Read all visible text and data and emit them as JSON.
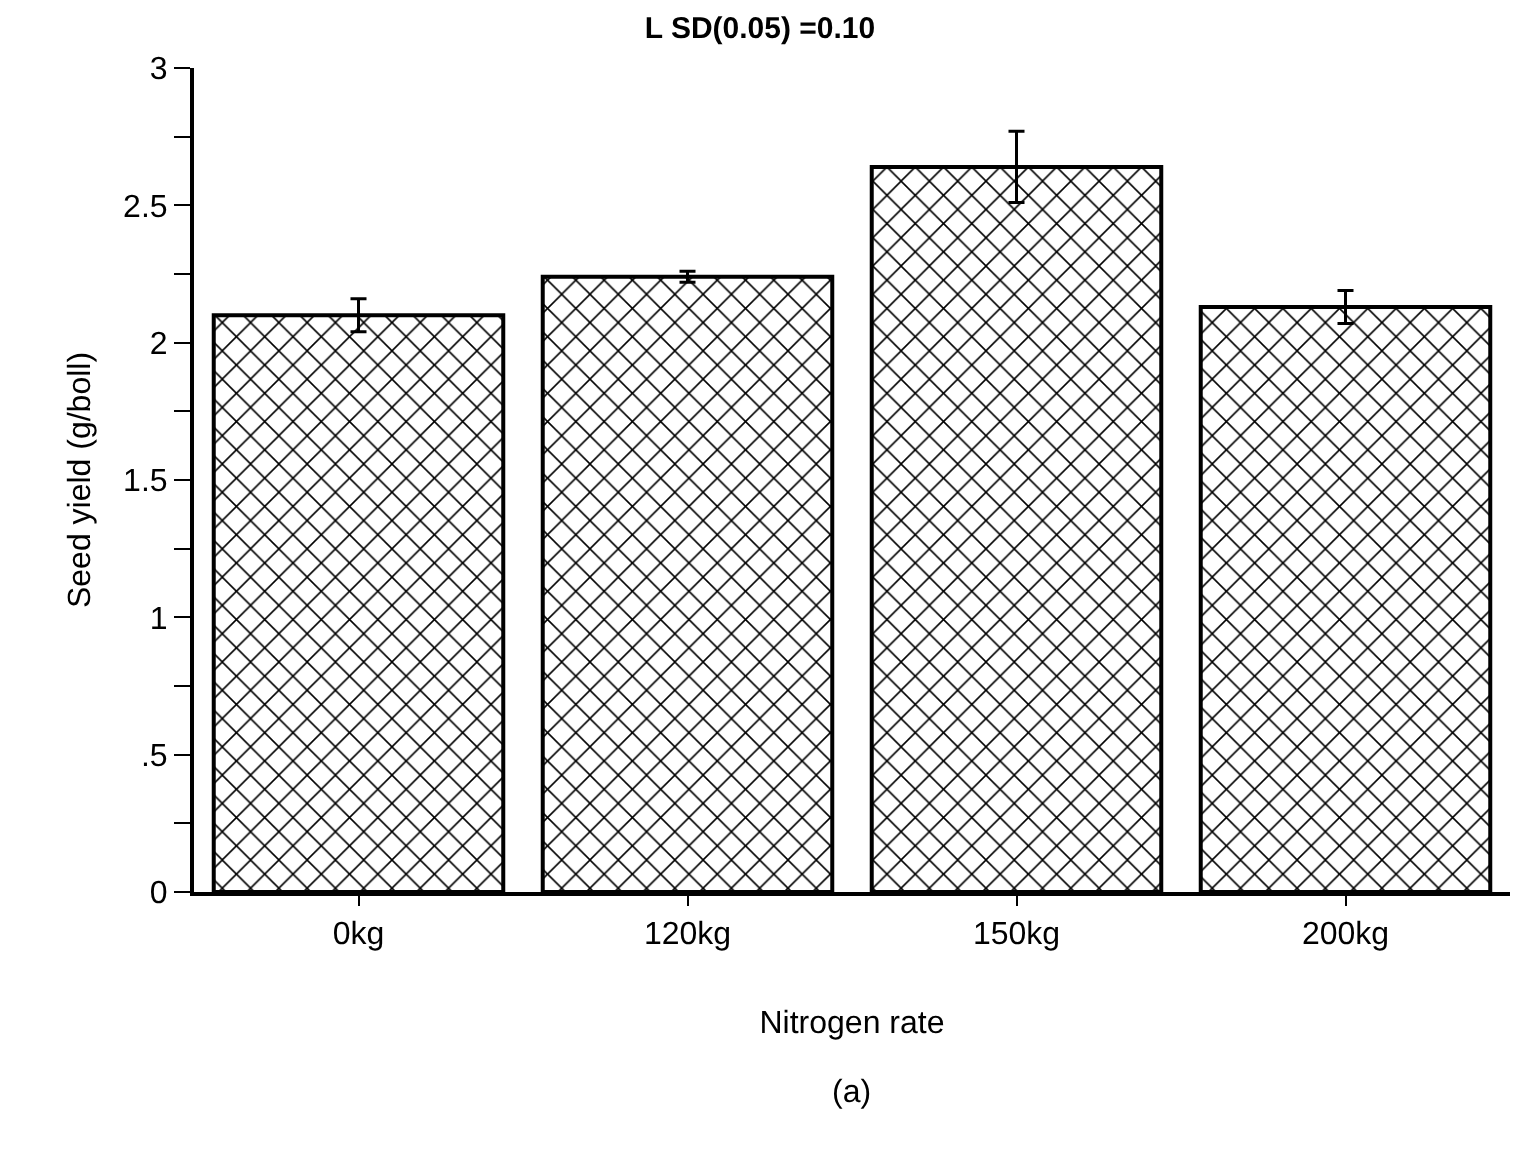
{
  "chart_data": {
    "type": "bar",
    "title": "L SD(0.05) =0.10",
    "xlabel": "Nitrogen rate",
    "ylabel": "Seed yield (g/boll)",
    "annotations": [
      "(a)"
    ],
    "categories": [
      "0kg",
      "120kg",
      "150kg",
      "200kg"
    ],
    "values": [
      2.1,
      2.24,
      2.64,
      2.13
    ],
    "errors": [
      0.06,
      0.02,
      0.13,
      0.06
    ],
    "color": "#000000",
    "ylim": [
      0,
      3
    ],
    "yticks": [
      0,
      {
        "value": 0.25,
        "label": null
      },
      {
        "value": 0.5,
        "label": ".5"
      },
      {
        "value": 0.75,
        "label": null
      },
      1,
      {
        "value": 1.25,
        "label": null
      },
      1.5,
      {
        "value": 1.75,
        "label": null
      },
      2,
      {
        "value": 2.25,
        "label": null
      },
      2.5,
      {
        "value": 2.75,
        "label": null
      },
      3
    ],
    "grid": false,
    "legend": false
  }
}
